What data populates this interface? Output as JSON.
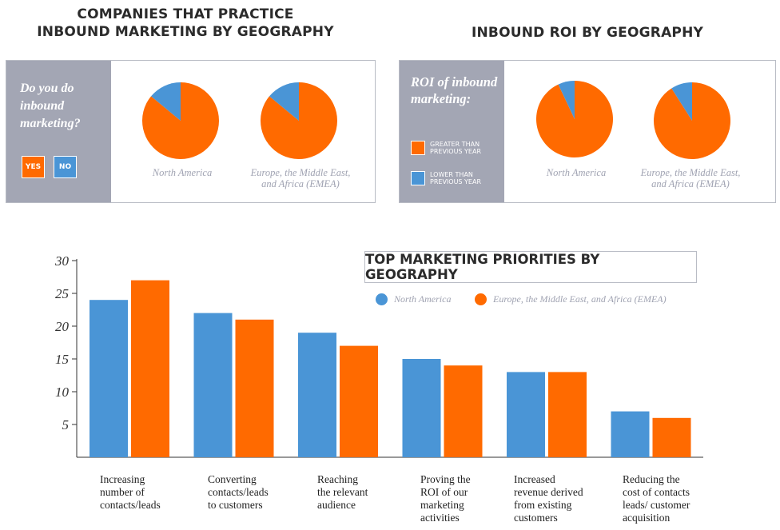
{
  "colors": {
    "north_america": "#4a95d6",
    "emea": "#ff6a00",
    "panel_side": "#a3a6b4",
    "caption": "#a0a3b2"
  },
  "inbound_section": {
    "title_line1": "COMPANIES THAT PRACTICE",
    "title_line2": "INBOUND MARKETING BY GEOGRAPHY",
    "question": "Do you do inbound marketing?",
    "yes_label": "YES",
    "no_label": "NO"
  },
  "roi_section": {
    "title": "INBOUND ROI BY GEOGRAPHY",
    "question": "ROI of inbound marketing:",
    "legend_greater": "GREATER THAN PREVIOUS YEAR",
    "legend_lower": "LOWER THAN PREVIOUS YEAR"
  },
  "chart_data": [
    {
      "type": "pie",
      "title": "COMPANIES THAT PRACTICE INBOUND MARKETING BY GEOGRAPHY",
      "pies": [
        {
          "label": "North America",
          "slices": [
            {
              "name": "YES",
              "value": 86
            },
            {
              "name": "NO",
              "value": 14
            }
          ]
        },
        {
          "label": "Europe, the Middle East, and Africa (EMEA)",
          "slices": [
            {
              "name": "YES",
              "value": 86
            },
            {
              "name": "NO",
              "value": 14
            }
          ]
        }
      ]
    },
    {
      "type": "pie",
      "title": "INBOUND ROI BY GEOGRAPHY",
      "pies": [
        {
          "label": "North America",
          "slices": [
            {
              "name": "GREATER THAN PREVIOUS YEAR",
              "value": 93
            },
            {
              "name": "LOWER THAN PREVIOUS YEAR",
              "value": 7
            }
          ]
        },
        {
          "label": "Europe, the Middle East, and Africa (EMEA)",
          "slices": [
            {
              "name": "GREATER THAN PREVIOUS YEAR",
              "value": 91
            },
            {
              "name": "LOWER THAN PREVIOUS YEAR",
              "value": 9
            }
          ]
        }
      ]
    },
    {
      "type": "bar",
      "title": "TOP MARKETING PRIORITIES BY GEOGRAPHY",
      "categories": [
        "Increasing number of contacts/leads",
        "Converting contacts/leads to customers",
        "Reaching the relevant audience",
        "Proving the ROI of our marketing activities",
        "Increased revenue derived from existing customers",
        "Reducing the cost of contacts leads/ customer acquisition"
      ],
      "category_lines": [
        [
          "Increasing",
          "number of",
          "contacts/leads"
        ],
        [
          "Converting",
          "contacts/leads",
          "to customers"
        ],
        [
          "Reaching",
          "the relevant",
          "audience"
        ],
        [
          "Proving the",
          "ROI of our",
          "marketing",
          "activities"
        ],
        [
          "Increased",
          "revenue derived",
          "from existing",
          "customers"
        ],
        [
          "Reducing the",
          "cost of contacts",
          "leads/ customer",
          "acquisition"
        ]
      ],
      "series": [
        {
          "name": "North America",
          "values": [
            24,
            22,
            19,
            15,
            13,
            7
          ]
        },
        {
          "name": "Europe, the Middle East, and Africa (EMEA)",
          "values": [
            27,
            21,
            17,
            14,
            13,
            6
          ]
        }
      ],
      "yticks": [
        5,
        10,
        15,
        20,
        25,
        30
      ],
      "ylim": [
        0,
        30
      ],
      "legend_position": "top-right",
      "grid": false
    }
  ]
}
